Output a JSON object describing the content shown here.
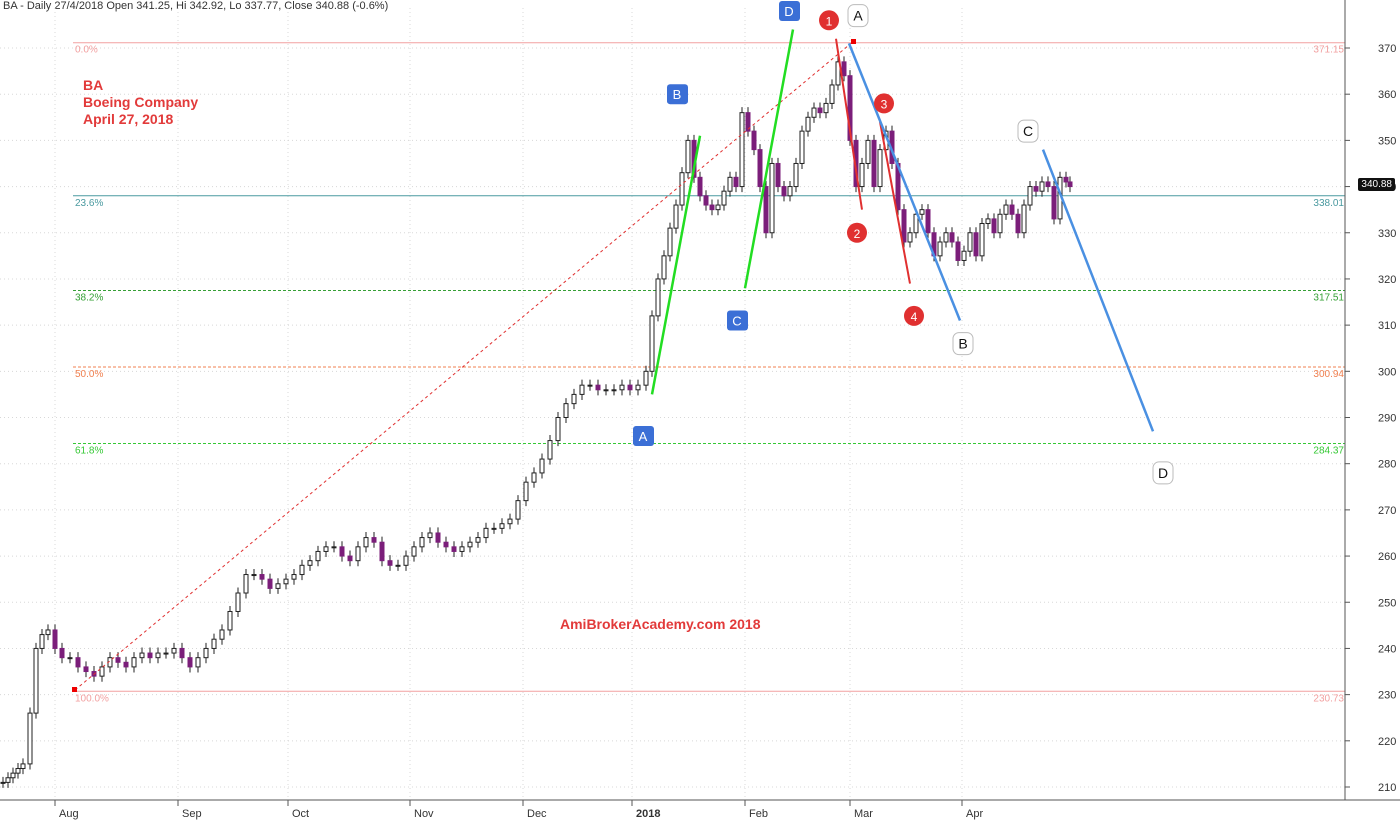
{
  "header": {
    "text": "BA - Daily 27/4/2018 Open 341.25, Hi 342.92, Lo 337.77, Close 340.88 (-0.6%)"
  },
  "annotation": {
    "ticker": "BA",
    "company": "Boeing Company",
    "date": "April 27, 2018"
  },
  "watermark": "AmiBrokerAcademy.com  2018",
  "last_price_label": "340.88",
  "colors": {
    "up_candle": "#ffffff",
    "down_candle": "#7b1e7a",
    "grid": "#d8d8d8",
    "axis_text": "#333333",
    "fib_0": "#f2a0a0",
    "fib_236": "#4a9aa0",
    "fib_382": "#35a035",
    "fib_50": "#f08050",
    "fib_618": "#35c835",
    "fib_100": "#f2a0a0",
    "trend_red": "#e03030",
    "green_line": "#22dd22",
    "blue_line": "#4a90e2",
    "red_line": "#e03030",
    "box_label": "#3b6fd6",
    "circle_label": "#e03030"
  },
  "chart_data": {
    "type": "candlestick",
    "y_axis": {
      "min": 205,
      "max": 377,
      "ticks": [
        210,
        220,
        230,
        240,
        250,
        260,
        270,
        280,
        290,
        300,
        310,
        320,
        330,
        340,
        350,
        360,
        370
      ]
    },
    "x_axis": {
      "labels": [
        "Aug",
        "Sep",
        "Oct",
        "Nov",
        "Dec",
        "2018",
        "Feb",
        "Mar",
        "Apr"
      ]
    },
    "fib_levels": [
      {
        "pct": "0.0%",
        "value": 371.15
      },
      {
        "pct": "23.6%",
        "value": 338.01
      },
      {
        "pct": "38.2%",
        "value": 317.51
      },
      {
        "pct": "50.0%",
        "value": 300.94
      },
      {
        "pct": "61.8%",
        "value": 284.37
      },
      {
        "pct": "100.0%",
        "value": 230.73
      }
    ],
    "labels": {
      "box": [
        "A",
        "B",
        "C",
        "D"
      ],
      "letter": [
        "A",
        "B",
        "C",
        "D"
      ],
      "circle": [
        "1",
        "2",
        "3",
        "4"
      ]
    }
  }
}
